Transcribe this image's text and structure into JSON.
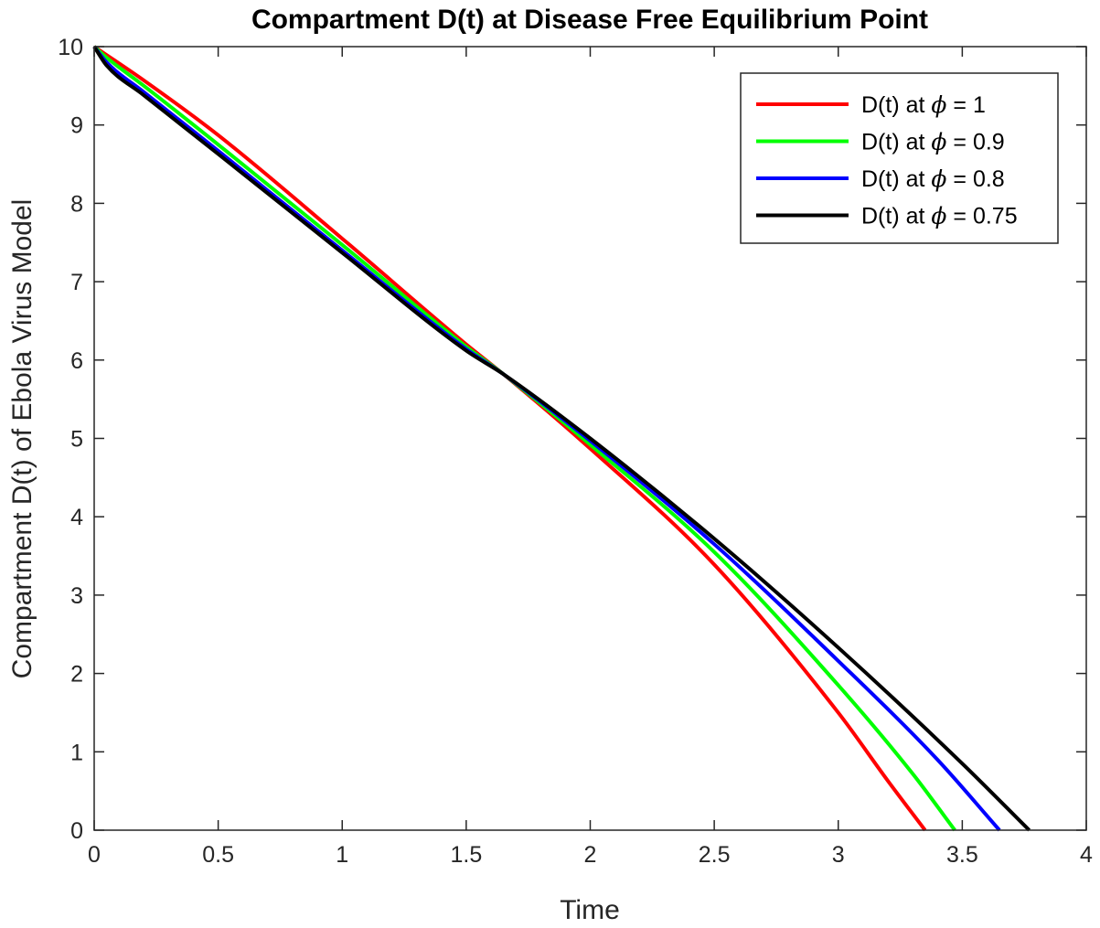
{
  "chart_data": {
    "type": "line",
    "title": "Compartment D(t) at Disease Free Equilibrium Point",
    "xlabel": "Time",
    "ylabel": "Compartment D(t) of Ebola Virus Model",
    "xlim": [
      0,
      4
    ],
    "ylim": [
      0,
      10
    ],
    "xticks": [
      0,
      0.5,
      1,
      1.5,
      2,
      2.5,
      3,
      3.5,
      4
    ],
    "xtick_labels": [
      "0",
      "0.5",
      "1",
      "1.5",
      "2",
      "2.5",
      "3",
      "3.5",
      "4"
    ],
    "yticks": [
      0,
      1,
      2,
      3,
      4,
      5,
      6,
      7,
      8,
      9,
      10
    ],
    "ytick_labels": [
      "0",
      "1",
      "2",
      "3",
      "4",
      "5",
      "6",
      "7",
      "8",
      "9",
      "10"
    ],
    "grid": false,
    "legend_position": "top-right",
    "series": [
      {
        "name": "D(t) at ϕ = 1",
        "label_prefix": "D(t) at ",
        "symbol": "ϕ",
        "label_suffix": " = 1",
        "color": "#ff0000",
        "x": [
          0,
          0.2,
          0.5,
          1.0,
          1.5,
          1.65,
          2.0,
          2.5,
          3.0,
          3.2,
          3.35
        ],
        "y": [
          10,
          9.57,
          8.87,
          7.55,
          6.2,
          5.82,
          4.87,
          3.39,
          1.5,
          0.63,
          0
        ]
      },
      {
        "name": "D(t) at ϕ = 0.9",
        "label_prefix": "D(t) at ",
        "symbol": "ϕ",
        "label_suffix": " = 0.9",
        "color": "#00ff00",
        "x": [
          0,
          0.05,
          0.2,
          0.5,
          1.0,
          1.5,
          1.65,
          2.0,
          2.5,
          3.0,
          3.3,
          3.47
        ],
        "y": [
          10,
          9.86,
          9.5,
          8.75,
          7.47,
          6.17,
          5.82,
          4.92,
          3.55,
          1.85,
          0.72,
          0
        ]
      },
      {
        "name": "D(t) at ϕ = 0.8",
        "label_prefix": "D(t) at ",
        "symbol": "ϕ",
        "label_suffix": " = 0.8",
        "color": "#0000ff",
        "x": [
          0,
          0.05,
          0.2,
          0.5,
          1.0,
          1.5,
          1.65,
          2.0,
          2.5,
          3.0,
          3.4,
          3.65
        ],
        "y": [
          10,
          9.8,
          9.42,
          8.67,
          7.4,
          6.14,
          5.82,
          4.97,
          3.65,
          2.16,
          0.9,
          0
        ]
      },
      {
        "name": "D(t) at ϕ = 0.75",
        "label_prefix": "D(t) at ",
        "symbol": "ϕ",
        "label_suffix": " = 0.75",
        "color": "#000000",
        "x": [
          0,
          0.05,
          0.2,
          0.5,
          1.0,
          1.5,
          1.65,
          2.0,
          2.5,
          3.0,
          3.5,
          3.77
        ],
        "y": [
          10,
          9.76,
          9.38,
          8.63,
          7.37,
          6.12,
          5.82,
          5.0,
          3.72,
          2.33,
          0.85,
          0
        ]
      }
    ]
  }
}
